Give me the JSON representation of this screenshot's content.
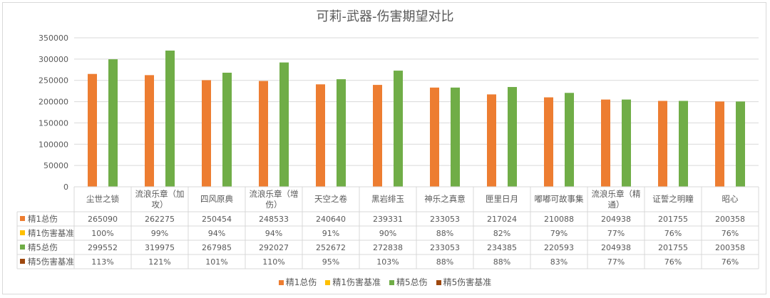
{
  "chart_data": {
    "type": "bar",
    "title": "可莉-武器-伤害期望对比",
    "categories": [
      "尘世之锁",
      "流浪乐章（加攻）",
      "四风原典",
      "流浪乐章（增伤）",
      "天空之卷",
      "黑岩绯玉",
      "神乐之真意",
      "匣里日月",
      "嘟嘟可故事集",
      "流浪乐章（精通）",
      "证誓之明瞳",
      "昭心"
    ],
    "category_lines": [
      [
        "尘世之锁"
      ],
      [
        "流浪乐章（加",
        "攻）"
      ],
      [
        "四风原典"
      ],
      [
        "流浪乐章（增",
        "伤）"
      ],
      [
        "天空之卷"
      ],
      [
        "黑岩绯玉"
      ],
      [
        "神乐之真意"
      ],
      [
        "匣里日月"
      ],
      [
        "嘟嘟可故事集"
      ],
      [
        "流浪乐章（精",
        "通）"
      ],
      [
        "证誓之明瞳"
      ],
      [
        "昭心"
      ]
    ],
    "series": [
      {
        "name": "精1总伤",
        "color": "#ED7D31",
        "plotted": true,
        "values": [
          265090,
          262275,
          250454,
          248533,
          240640,
          239331,
          233053,
          217024,
          210088,
          204938,
          201755,
          200358
        ],
        "labels": [
          "265090",
          "262275",
          "250454",
          "248533",
          "240640",
          "239331",
          "233053",
          "217024",
          "210088",
          "204938",
          "201755",
          "200358"
        ]
      },
      {
        "name": "精1伤害基准",
        "color": "#FFC000",
        "plotted": false,
        "values": [
          100,
          99,
          94,
          94,
          91,
          90,
          88,
          82,
          79,
          77,
          76,
          76
        ],
        "labels": [
          "100%",
          "99%",
          "94%",
          "94%",
          "91%",
          "90%",
          "88%",
          "82%",
          "79%",
          "77%",
          "76%",
          "76%"
        ]
      },
      {
        "name": "精5总伤",
        "color": "#70AD47",
        "plotted": true,
        "values": [
          299552,
          319975,
          267985,
          292027,
          252672,
          272838,
          233053,
          234385,
          220593,
          204938,
          201755,
          200358
        ],
        "labels": [
          "299552",
          "319975",
          "267985",
          "292027",
          "252672",
          "272838",
          "233053",
          "234385",
          "220593",
          "204938",
          "201755",
          "200358"
        ]
      },
      {
        "name": "精5伤害基准",
        "color": "#9E480E",
        "plotted": false,
        "values": [
          113,
          121,
          101,
          110,
          95,
          103,
          88,
          88,
          83,
          77,
          76,
          76
        ],
        "labels": [
          "113%",
          "121%",
          "101%",
          "110%",
          "95%",
          "103%",
          "88%",
          "88%",
          "83%",
          "77%",
          "76%",
          "76%"
        ]
      }
    ],
    "ylim": [
      0,
      350000
    ],
    "yticks": [
      "0",
      "50000",
      "100000",
      "150000",
      "200000",
      "250000",
      "300000",
      "350000"
    ],
    "grid": true,
    "legend_position": "bottom",
    "has_data_table": true
  }
}
